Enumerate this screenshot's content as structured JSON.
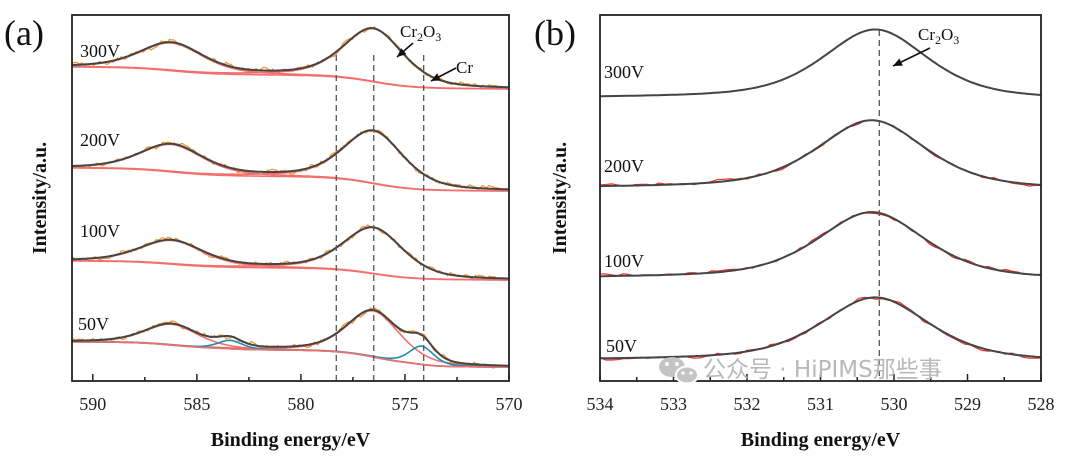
{
  "chart_data": [
    {
      "type": "line",
      "panel_label": "(a)",
      "xlabel": "Binding energy/eV",
      "ylabel": "Intensity/a.u.",
      "xlim": [
        591,
        570
      ],
      "ylim": [
        0,
        100
      ],
      "x_ticks": [
        "590",
        "585",
        "580",
        "575",
        "570"
      ],
      "x_tick_values": [
        590,
        585,
        580,
        575,
        570
      ],
      "minor_tick_step": 2.5,
      "reference_lines": [
        578.3,
        576.5,
        574.1
      ],
      "annotations": [
        {
          "text": "Cr2O3",
          "points_to": 576.5
        },
        {
          "text": "Cr",
          "points_to": 574.1
        }
      ],
      "colors": {
        "raw": "#f0962e",
        "fit": "#454545",
        "component": "#f2706c",
        "metal_component": "#1c8db0",
        "reference": "#555555"
      },
      "series": [
        {
          "label": "300V",
          "background_left": 85.8,
          "background_right": 79.8,
          "peaks": [
            {
              "center": 586.2,
              "height": 7.6,
              "fwhm": 3.6,
              "kind": "Cr2O3"
            },
            {
              "center": 576.5,
              "height": 14.5,
              "fwhm": 3.4,
              "kind": "Cr2O3"
            }
          ]
        },
        {
          "label": "200V",
          "background_left": 58.2,
          "background_right": 51.9,
          "peaks": [
            {
              "center": 586.2,
              "height": 7.5,
              "fwhm": 3.6,
              "kind": "Cr2O3"
            },
            {
              "center": 576.5,
              "height": 14.4,
              "fwhm": 3.4,
              "kind": "Cr2O3"
            }
          ]
        },
        {
          "label": "100V",
          "background_left": 32.8,
          "background_right": 27.6,
          "peaks": [
            {
              "center": 586.2,
              "height": 6.5,
              "fwhm": 3.6,
              "kind": "Cr2O3"
            },
            {
              "center": 576.5,
              "height": 12.6,
              "fwhm": 3.4,
              "kind": "Cr2O3"
            }
          ]
        },
        {
          "label": "50V",
          "background_left": 10.7,
          "background_right": 3.8,
          "peaks": [
            {
              "center": 586.2,
              "height": 5.7,
              "fwhm": 3.0,
              "kind": "Cr2O3"
            },
            {
              "center": 576.5,
              "height": 12.6,
              "fwhm": 3.0,
              "kind": "Cr2O3"
            },
            {
              "center": 583.4,
              "height": 2.3,
              "fwhm": 1.4,
              "kind": "Cr"
            },
            {
              "center": 574.2,
              "height": 5.0,
              "fwhm": 1.4,
              "kind": "Cr"
            }
          ]
        }
      ]
    },
    {
      "type": "line",
      "panel_label": "(b)",
      "xlabel": "Binding energy/eV",
      "ylabel": "Intensity/a.u.",
      "xlim": [
        534,
        528
      ],
      "ylim": [
        0,
        100
      ],
      "x_ticks": [
        "534",
        "533",
        "532",
        "531",
        "530",
        "529",
        "528"
      ],
      "x_tick_values": [
        534,
        533,
        532,
        531,
        530,
        529,
        528
      ],
      "minor_tick_step": 0.5,
      "reference_lines": [
        530.2
      ],
      "annotations": [
        {
          "text": "Cr2O3",
          "points_to": 530.2
        }
      ],
      "colors": {
        "raw_300V": "#f0962e",
        "raw": "#e8302a",
        "fit": "#454545",
        "reference": "#555555"
      },
      "series": [
        {
          "label": "300V",
          "background_left": 77.3,
          "background_right": 76.8,
          "peaks": [
            {
              "center": 530.25,
              "height": 19.0,
              "fwhm": 1.7,
              "kind": "Cr2O3"
            }
          ]
        },
        {
          "label": "200V",
          "background_left": 52.7,
          "background_right": 52.2,
          "peaks": [
            {
              "center": 530.3,
              "height": 18.8,
              "fwhm": 1.75,
              "kind": "Cr2O3"
            }
          ]
        },
        {
          "label": "100V",
          "background_left": 28.1,
          "background_right": 27.6,
          "peaks": [
            {
              "center": 530.3,
              "height": 18.3,
              "fwhm": 1.75,
              "kind": "Cr2O3"
            }
          ]
        },
        {
          "label": "50V",
          "background_left": 5.7,
          "background_right": 5.2,
          "peaks": [
            {
              "center": 530.25,
              "height": 17.4,
              "fwhm": 1.75,
              "kind": "Cr2O3"
            }
          ]
        }
      ]
    }
  ],
  "watermark": {
    "text": "公众号 · HiPIMS那些事",
    "icon": "wechat-icon"
  }
}
